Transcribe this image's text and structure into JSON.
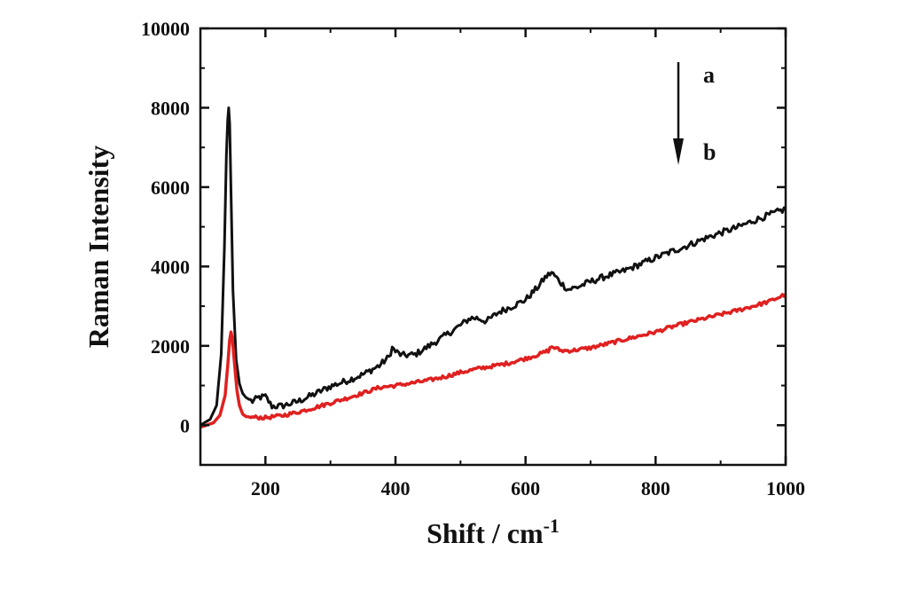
{
  "chart_data": {
    "type": "line",
    "title": "",
    "xlabel": "Shift / cm",
    "xlabel_superscript": "-1",
    "ylabel": "Raman Intensity",
    "xlim": [
      100,
      1000
    ],
    "ylim": [
      -1000,
      10000
    ],
    "xticks": [
      200,
      400,
      600,
      800,
      1000
    ],
    "yticks": [
      0,
      2000,
      4000,
      6000,
      8000,
      10000
    ],
    "grid": false,
    "annotations": {
      "top_label": "a",
      "bottom_label": "b",
      "arrow_direction": "down"
    },
    "series": [
      {
        "name": "a",
        "color": "#111111",
        "x": [
          100,
          115,
          125,
          132,
          137,
          140,
          142,
          143.5,
          145,
          147,
          150,
          155,
          160,
          165,
          170,
          180,
          190,
          200,
          205,
          210,
          225,
          250,
          275,
          300,
          325,
          350,
          375,
          390,
          395,
          400,
          410,
          430,
          450,
          475,
          500,
          515,
          525,
          540,
          560,
          580,
          600,
          620,
          630,
          640,
          645,
          655,
          665,
          680,
          700,
          725,
          750,
          775,
          800,
          825,
          850,
          875,
          900,
          925,
          950,
          975,
          1000
        ],
        "values": [
          0,
          150,
          500,
          1800,
          4500,
          6800,
          7700,
          8000,
          7600,
          5900,
          3400,
          1650,
          1050,
          800,
          700,
          600,
          700,
          720,
          600,
          480,
          480,
          600,
          780,
          980,
          1120,
          1280,
          1500,
          1720,
          1950,
          1860,
          1760,
          1780,
          1980,
          2240,
          2520,
          2700,
          2700,
          2620,
          2860,
          3000,
          3160,
          3500,
          3720,
          3850,
          3760,
          3580,
          3420,
          3480,
          3620,
          3760,
          3880,
          4050,
          4220,
          4380,
          4530,
          4700,
          4850,
          4980,
          5150,
          5300,
          5450
        ]
      },
      {
        "name": "b",
        "color": "#e02020",
        "x": [
          100,
          120,
          130,
          138,
          142,
          145,
          147,
          149,
          152,
          156,
          160,
          165,
          170,
          180,
          200,
          225,
          250,
          275,
          300,
          325,
          350,
          375,
          400,
          425,
          450,
          475,
          500,
          525,
          550,
          575,
          600,
          620,
          635,
          640,
          645,
          655,
          670,
          700,
          725,
          750,
          775,
          800,
          825,
          850,
          875,
          900,
          925,
          950,
          975,
          1000
        ],
        "values": [
          -50,
          60,
          250,
          750,
          1500,
          2150,
          2350,
          2200,
          1650,
          900,
          500,
          280,
          220,
          200,
          190,
          240,
          330,
          440,
          560,
          680,
          810,
          950,
          1000,
          1060,
          1130,
          1220,
          1330,
          1420,
          1490,
          1570,
          1680,
          1780,
          1880,
          1980,
          1950,
          1880,
          1880,
          1950,
          2050,
          2150,
          2250,
          2350,
          2480,
          2590,
          2690,
          2790,
          2890,
          3000,
          3120,
          3300
        ]
      }
    ]
  }
}
